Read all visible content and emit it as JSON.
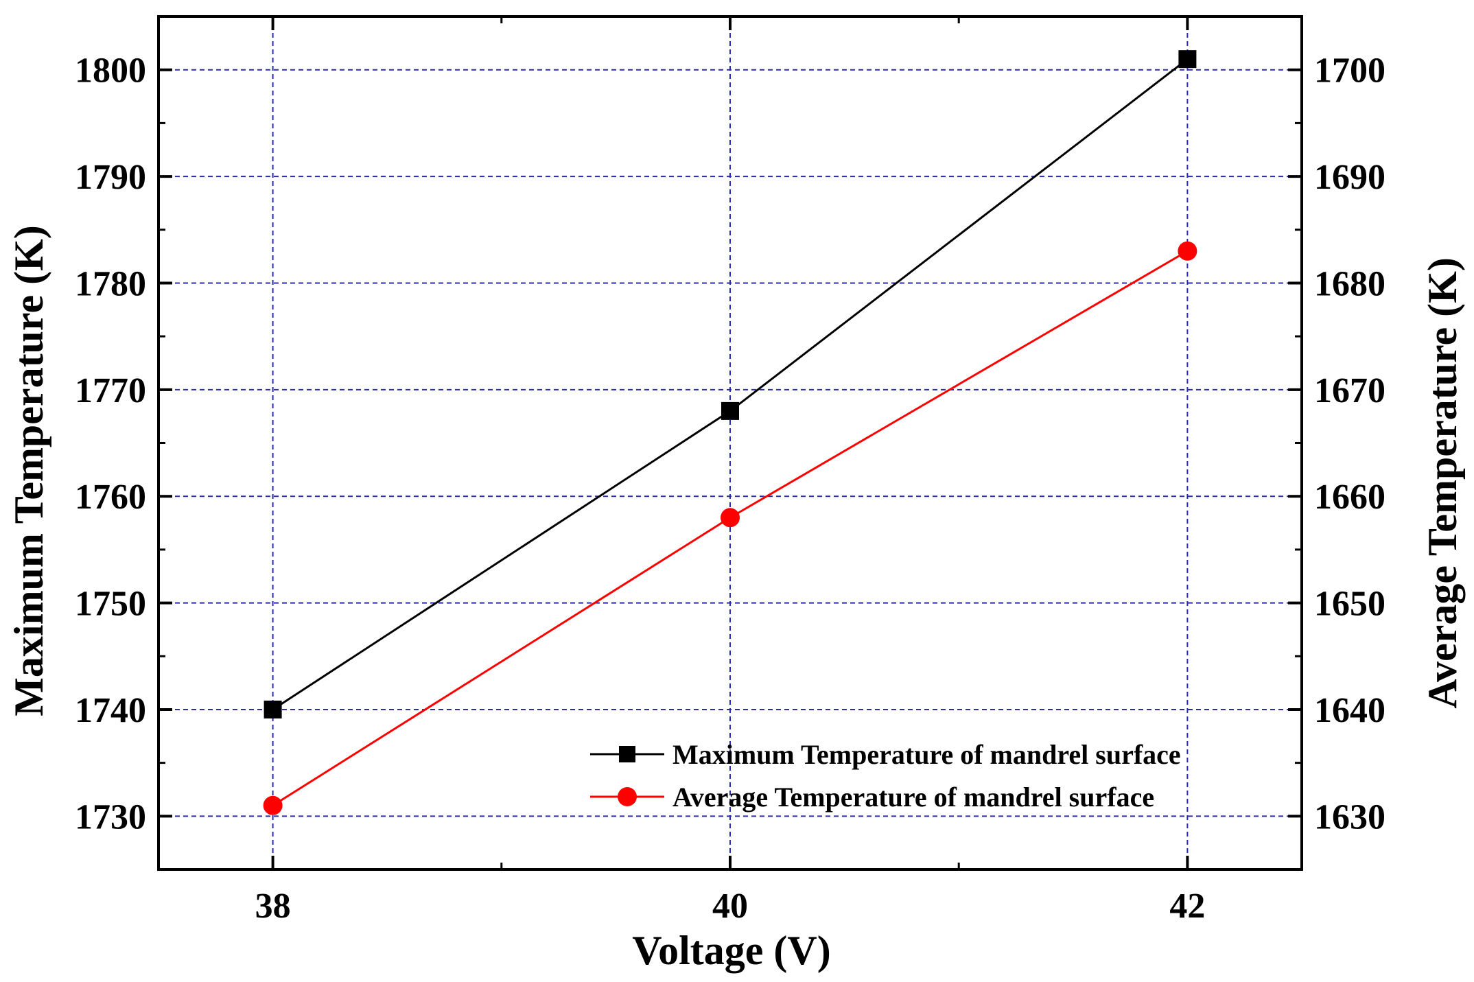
{
  "chart_data": {
    "type": "line",
    "x": [
      38,
      40,
      42
    ],
    "xticks": [
      "38",
      "40",
      "42"
    ],
    "xlabel": "Voltage (V)",
    "xlim": [
      37.5,
      42.5
    ],
    "ylabel_left": "Maximum Temperature (K)",
    "ylabel_right": "Average Temperature (K)",
    "ylim_left": [
      1725,
      1805
    ],
    "ylim_right": [
      1625,
      1705
    ],
    "yticks_left": [
      1730,
      1740,
      1750,
      1760,
      1770,
      1780,
      1790,
      1800
    ],
    "yticks_right": [
      1630,
      1640,
      1650,
      1660,
      1670,
      1680,
      1690,
      1700
    ],
    "grid": true,
    "legend_position": "bottom-right",
    "series": [
      {
        "name": "Maximum Temperature of mandrel surface",
        "axis": "left",
        "color": "#000000",
        "marker": "square",
        "values": [
          1740,
          1768,
          1801
        ]
      },
      {
        "name": "Average Temperature of mandrel surface",
        "axis": "right",
        "color": "#ff0000",
        "marker": "circle",
        "values": [
          1631,
          1658,
          1683
        ]
      }
    ]
  }
}
